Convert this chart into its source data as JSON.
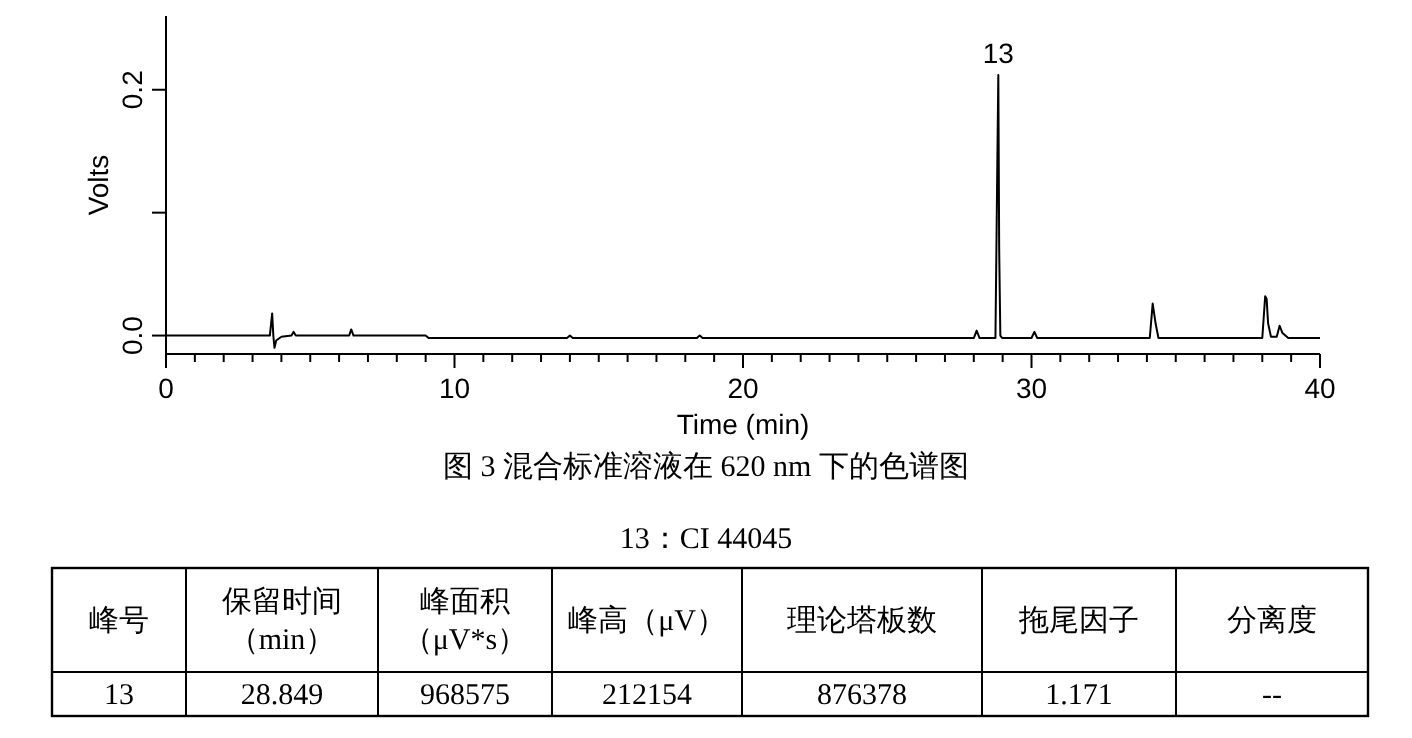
{
  "chart_data": {
    "type": "line",
    "xlabel": "Time (min)",
    "ylabel": "Volts",
    "x": [
      0,
      3.6,
      3.68,
      3.72,
      3.76,
      3.82,
      4.0,
      4.35,
      4.42,
      4.5,
      6.35,
      6.42,
      6.5,
      9.0,
      9.1,
      13.9,
      14.0,
      14.1,
      18.4,
      18.5,
      18.6,
      28.0,
      28.1,
      28.2,
      28.75,
      28.82,
      28.85,
      28.88,
      28.92,
      28.98,
      29.1,
      30.0,
      30.1,
      30.2,
      34.1,
      34.2,
      34.25,
      34.3,
      34.4,
      38.0,
      38.1,
      38.15,
      38.2,
      38.3,
      38.5,
      38.6,
      38.7,
      38.9,
      40
    ],
    "series": [
      {
        "color": "#000000",
        "values": [
          0,
          0,
          0.018,
          0,
          -0.01,
          -0.004,
          -0.001,
          0,
          0.003,
          0,
          0,
          0.005,
          0,
          0,
          -0.002,
          -0.002,
          0,
          -0.002,
          -0.002,
          0,
          -0.002,
          -0.002,
          0.004,
          -0.002,
          -0.002,
          0.15,
          0.212,
          0.07,
          0,
          -0.002,
          -0.002,
          -0.002,
          0.003,
          -0.002,
          -0.002,
          0.026,
          0.018,
          0.01,
          -0.002,
          -0.002,
          0.032,
          0.03,
          0.01,
          -0.001,
          -0.001,
          0.008,
          0.002,
          -0.002,
          -0.002
        ]
      }
    ],
    "xlim": [
      0,
      40
    ],
    "xticks": [
      0,
      {
        "value": 1,
        "label": null
      },
      {
        "value": 2,
        "label": null
      },
      {
        "value": 3,
        "label": null
      },
      {
        "value": 4,
        "label": null
      },
      {
        "value": 5,
        "label": null
      },
      {
        "value": 6,
        "label": null
      },
      {
        "value": 7,
        "label": null
      },
      {
        "value": 8,
        "label": null
      },
      {
        "value": 9,
        "label": null
      },
      10,
      {
        "value": 11,
        "label": null
      },
      {
        "value": 12,
        "label": null
      },
      {
        "value": 13,
        "label": null
      },
      {
        "value": 14,
        "label": null
      },
      {
        "value": 15,
        "label": null
      },
      {
        "value": 16,
        "label": null
      },
      {
        "value": 17,
        "label": null
      },
      {
        "value": 18,
        "label": null
      },
      {
        "value": 19,
        "label": null
      },
      20,
      {
        "value": 21,
        "label": null
      },
      {
        "value": 22,
        "label": null
      },
      {
        "value": 23,
        "label": null
      },
      {
        "value": 24,
        "label": null
      },
      {
        "value": 25,
        "label": null
      },
      {
        "value": 26,
        "label": null
      },
      {
        "value": 27,
        "label": null
      },
      {
        "value": 28,
        "label": null
      },
      {
        "value": 29,
        "label": null
      },
      30,
      {
        "value": 31,
        "label": null
      },
      {
        "value": 32,
        "label": null
      },
      {
        "value": 33,
        "label": null
      },
      {
        "value": 34,
        "label": null
      },
      {
        "value": 35,
        "label": null
      },
      {
        "value": 36,
        "label": null
      },
      {
        "value": 37,
        "label": null
      },
      {
        "value": 38,
        "label": null
      },
      {
        "value": 39,
        "label": null
      },
      40
    ],
    "ylim": [
      -0.015,
      0.26
    ],
    "yticks": [
      {
        "value": 0,
        "label": "0.0"
      },
      {
        "value": 0.1,
        "label": null
      },
      {
        "value": 0.2,
        "label": "0.2"
      }
    ],
    "grid": false,
    "marker": "none",
    "line_style": "solid",
    "annotations": [
      {
        "text": "13",
        "x": 28.85,
        "y": 0.212
      },
      "图 3  混合标准溶液在 620 nm 下的色谱图",
      "13：CI 44045",
      "峰号",
      "保留时间（min）",
      "峰面积（μV*s）",
      "峰高（μV）",
      "理论塔板数",
      "拖尾因子",
      "分离度",
      "13",
      "28.849",
      "968575",
      "212154",
      "876378",
      "1.171",
      "--"
    ]
  }
}
